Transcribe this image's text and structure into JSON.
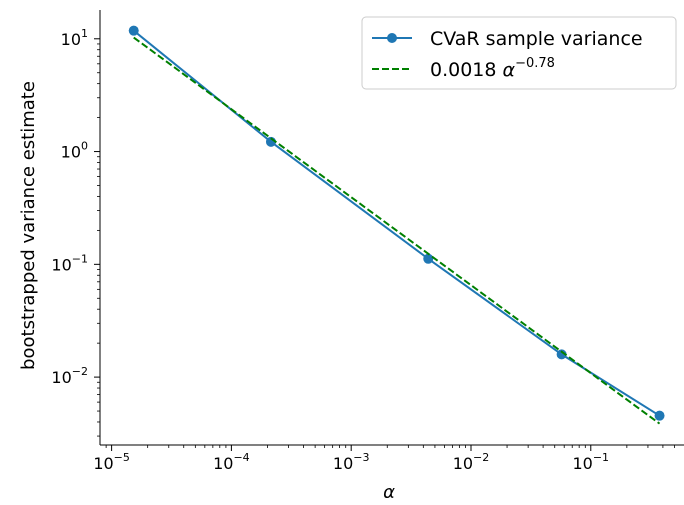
{
  "chart_data": {
    "type": "line",
    "xscale": "log",
    "yscale": "log",
    "xlabel": "α",
    "ylabel": "bootstrapped variance estimate",
    "xlim": [
      8e-06,
      0.6
    ],
    "ylim": [
      0.0025,
      18
    ],
    "x_ticks": [
      {
        "value": 1e-05,
        "base": "10",
        "exp": "−5"
      },
      {
        "value": 0.0001,
        "base": "10",
        "exp": "−4"
      },
      {
        "value": 0.001,
        "base": "10",
        "exp": "−3"
      },
      {
        "value": 0.01,
        "base": "10",
        "exp": "−2"
      },
      {
        "value": 0.1,
        "base": "10",
        "exp": "−1"
      }
    ],
    "y_ticks": [
      {
        "value": 0.01,
        "base": "10",
        "exp": "−2"
      },
      {
        "value": 0.1,
        "base": "10",
        "exp": "−1"
      },
      {
        "value": 1,
        "base": "10",
        "exp": "0"
      },
      {
        "value": 10,
        "base": "10",
        "exp": "1"
      }
    ],
    "grid": false,
    "legend_position": "top-right",
    "series": [
      {
        "name": "CVaR sample variance",
        "style": "solid",
        "marker": "circle",
        "color": "#1f77b4",
        "x": [
          1.53e-05,
          0.000214,
          0.0044,
          0.0571,
          0.375
        ],
        "y": [
          11.8,
          1.22,
          0.112,
          0.0159,
          0.00455
        ]
      },
      {
        "name": "0.0018 α",
        "name_exponent": "−0.78",
        "style": "dashed",
        "marker": "none",
        "color": "#008000",
        "fit": {
          "coef": 0.0018,
          "exponent": -0.78
        },
        "x": [
          1.53e-05,
          0.375
        ]
      }
    ]
  }
}
